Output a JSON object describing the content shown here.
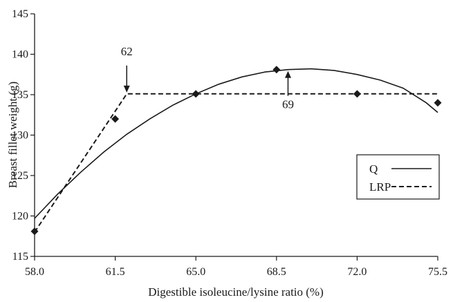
{
  "chart_data": {
    "type": "line",
    "xlabel": "Digestible isoleucine/lysine ratio (%)",
    "ylabel": "Breast fillet weight (g)",
    "xlim": [
      58.0,
      75.5
    ],
    "ylim": [
      115,
      145
    ],
    "xticks": [
      58.0,
      61.5,
      65.0,
      68.5,
      72.0,
      75.5
    ],
    "xtick_labels": [
      "58.0",
      "61.5",
      "65.0",
      "68.5",
      "72.0",
      "75.5"
    ],
    "yticks": [
      115,
      120,
      125,
      130,
      135,
      140,
      145
    ],
    "ytick_labels": [
      "115",
      "120",
      "125",
      "130",
      "135",
      "140",
      "145"
    ],
    "grid": false,
    "legend_position": "right",
    "observed_points": {
      "x": [
        58.0,
        61.5,
        65.0,
        68.5,
        72.0,
        75.5
      ],
      "y": [
        118.1,
        132.0,
        135.1,
        138.1,
        135.1,
        134.0
      ]
    },
    "series": [
      {
        "name": "Q",
        "style": "solid",
        "x": [
          58.0,
          59.0,
          60.0,
          61.0,
          62.0,
          63.0,
          64.0,
          65.0,
          66.0,
          67.0,
          68.0,
          69.0,
          70.0,
          71.0,
          72.0,
          73.0,
          74.0,
          75.0,
          75.5
        ],
        "y": [
          119.7,
          122.7,
          125.4,
          127.9,
          130.1,
          132.0,
          133.7,
          135.1,
          136.3,
          137.2,
          137.8,
          138.1,
          138.2,
          138.0,
          137.5,
          136.8,
          135.8,
          134.0,
          132.8
        ]
      },
      {
        "name": "LRP",
        "style": "dashed",
        "x": [
          58.0,
          62.0,
          75.5
        ],
        "y": [
          118.0,
          135.1,
          135.1
        ]
      }
    ],
    "annotations": [
      {
        "text": "62",
        "x": 62.0,
        "y": 135.1,
        "arrow": "down"
      },
      {
        "text": "69",
        "x": 69.0,
        "y": 138.1,
        "arrow": "up"
      }
    ],
    "legend": [
      {
        "label": "Q",
        "style": "solid"
      },
      {
        "label": "LRP",
        "style": "dashed"
      }
    ]
  },
  "colors": {
    "line": "#1a1a1a",
    "background": "#ffffff"
  }
}
